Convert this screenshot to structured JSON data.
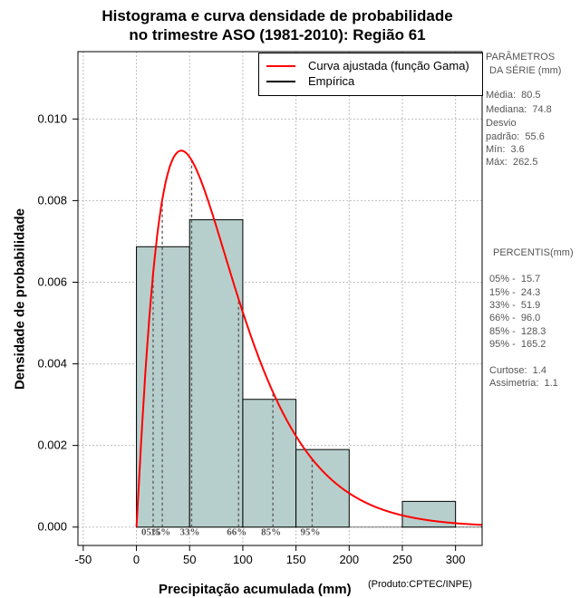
{
  "header": {
    "title_line1": "Histograma e curva densidade de probabilidade",
    "title_line2": "no trimestre ASO (1981-2010): Região 61"
  },
  "axes": {
    "xlabel": "Precipitação acumulada (mm)",
    "product": "(Produto:CPTEC/INPE)",
    "ylabel": "Densidade de probabilidade"
  },
  "legend": {
    "fitted": "Curva ajustada (função Gama)",
    "empirical": "Empírica"
  },
  "stats": {
    "heading1": "PARÂMETROS",
    "heading2": "DA SÉRIE (mm)",
    "mean": "Média:  80.5",
    "median": "Mediana:  74.8",
    "sd_label": "Desvio",
    "sd": "padrão:  55.6",
    "min": "Mín:  3.6",
    "max": "Máx:  262.5"
  },
  "percentiles": {
    "heading": "PERCENTIS(mm)",
    "p05": "05% -  15.7",
    "p15": "15% -  24.3",
    "p33": "33% -  51.9",
    "p66": "66% -  96.0",
    "p85": "85% -  128.3",
    "p95": "95% -  165.2",
    "kurtosis": "Curtose:  1.4",
    "skewness": "Assimetria:  1.1"
  },
  "colors": {
    "bar_fill": "#b7cfcc",
    "curve": "#ff0000",
    "grid": "#bdbdbd",
    "marker": "#555555"
  },
  "chart_data": {
    "type": "bar",
    "title": "Histograma e curva densidade de probabilidade no trimestre ASO (1981-2010): Região 61",
    "xlabel": "Precipitação acumulada (mm)",
    "ylabel": "Densidade de probabilidade",
    "xlim": [
      -55,
      325
    ],
    "ylim": [
      -0.00045,
      0.01165
    ],
    "x_ticks": [
      -50,
      0,
      50,
      100,
      150,
      200,
      250,
      300
    ],
    "y_ticks": [
      0.0,
      0.002,
      0.004,
      0.006,
      0.008,
      0.01
    ],
    "y_tick_labels": [
      "0.000",
      "0.002",
      "0.004",
      "0.006",
      "0.008",
      "0.010"
    ],
    "grid": true,
    "legend_position": "top-right",
    "histogram": {
      "bin_edges": [
        0,
        50,
        100,
        150,
        200,
        250,
        300
      ],
      "densities": [
        0.00687,
        0.00753,
        0.00313,
        0.0019,
        0.0,
        0.00063
      ]
    },
    "gamma_fit": {
      "shape": 2.1,
      "scale": 38.3
    },
    "percentile_markers": [
      {
        "label": "05%",
        "value": 15.7
      },
      {
        "label": "15%",
        "value": 24.3
      },
      {
        "label": "33%",
        "value": 51.9
      },
      {
        "label": "66%",
        "value": 96.0
      },
      {
        "label": "85%",
        "value": 128.3
      },
      {
        "label": "95%",
        "value": 165.2
      }
    ]
  }
}
